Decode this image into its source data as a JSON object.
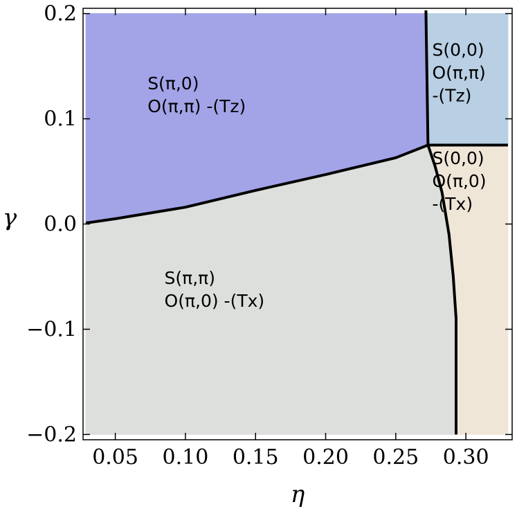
{
  "chart_data": {
    "type": "phase-diagram",
    "xlabel": "η",
    "ylabel": "γ",
    "xlim": [
      0.027,
      0.333
    ],
    "ylim": [
      -0.205,
      0.205
    ],
    "x_ticks": [
      {
        "value": 0.05,
        "label": "0.05"
      },
      {
        "value": 0.1,
        "label": "0.10"
      },
      {
        "value": 0.15,
        "label": "0.15"
      },
      {
        "value": 0.2,
        "label": "0.20"
      },
      {
        "value": 0.25,
        "label": "0.25"
      },
      {
        "value": 0.3,
        "label": "0.30"
      }
    ],
    "y_ticks": [
      {
        "value": 0.2,
        "label": "0.2"
      },
      {
        "value": 0.1,
        "label": "0.1"
      },
      {
        "value": 0.0,
        "label": "0.0"
      },
      {
        "value": -0.1,
        "label": "−0.1"
      },
      {
        "value": -0.2,
        "label": "−0.2"
      }
    ],
    "grid": false,
    "regions": [
      {
        "color": "#a3a3e8",
        "polygon": [
          [
            0.029,
            0.2
          ],
          [
            0.273,
            0.2
          ],
          [
            0.273,
            0.075
          ],
          [
            0.25,
            0.063
          ],
          [
            0.2,
            0.047
          ],
          [
            0.15,
            0.032
          ],
          [
            0.1,
            0.016
          ],
          [
            0.05,
            0.005
          ],
          [
            0.029,
            0.001
          ]
        ],
        "label_lines": [
          "S(π,0)",
          "O(π,π) -(Tz)"
        ],
        "label_at": [
          0.073,
          0.128
        ]
      },
      {
        "color": "#b8cfe4",
        "polygon": [
          [
            0.273,
            0.2
          ],
          [
            0.33,
            0.2
          ],
          [
            0.33,
            0.075
          ],
          [
            0.273,
            0.075
          ]
        ],
        "label_lines": [
          "S(0,0)",
          "O(π,π)",
          "-(Tz)"
        ],
        "label_at": [
          0.276,
          0.16
        ]
      },
      {
        "color": "#f0e6d8",
        "polygon": [
          [
            0.273,
            0.075
          ],
          [
            0.33,
            0.075
          ],
          [
            0.33,
            -0.2
          ],
          [
            0.293,
            -0.2
          ],
          [
            0.293,
            -0.09
          ],
          [
            0.291,
            -0.05
          ],
          [
            0.288,
            -0.01
          ],
          [
            0.283,
            0.03
          ],
          [
            0.278,
            0.055
          ]
        ],
        "label_lines": [
          "S(0,0)",
          "O(π,0)",
          "-(Tx)"
        ],
        "label_at": [
          0.276,
          0.057
        ]
      },
      {
        "color": "#dcdfdb",
        "polygon": [
          [
            0.029,
            0.001
          ],
          [
            0.05,
            0.005
          ],
          [
            0.1,
            0.016
          ],
          [
            0.15,
            0.032
          ],
          [
            0.2,
            0.047
          ],
          [
            0.25,
            0.063
          ],
          [
            0.273,
            0.075
          ],
          [
            0.278,
            0.055
          ],
          [
            0.283,
            0.03
          ],
          [
            0.288,
            -0.01
          ],
          [
            0.291,
            -0.05
          ],
          [
            0.293,
            -0.09
          ],
          [
            0.293,
            -0.2
          ],
          [
            0.029,
            -0.2
          ]
        ],
        "label_lines": [
          "S(π,π)",
          "O(π,0) -(Tx)"
        ],
        "label_at": [
          0.085,
          -0.057
        ]
      }
    ],
    "boundaries": [
      {
        "points": [
          [
            0.029,
            0.001
          ],
          [
            0.05,
            0.005
          ],
          [
            0.1,
            0.016
          ],
          [
            0.15,
            0.032
          ],
          [
            0.2,
            0.047
          ],
          [
            0.25,
            0.063
          ],
          [
            0.273,
            0.075
          ]
        ]
      },
      {
        "points": [
          [
            0.2715,
            0.203
          ],
          [
            0.273,
            0.075
          ]
        ]
      },
      {
        "points": [
          [
            0.273,
            0.075
          ],
          [
            0.33,
            0.075
          ]
        ]
      },
      {
        "points": [
          [
            0.273,
            0.075
          ],
          [
            0.278,
            0.055
          ],
          [
            0.283,
            0.03
          ],
          [
            0.288,
            -0.01
          ],
          [
            0.291,
            -0.05
          ],
          [
            0.293,
            -0.09
          ],
          [
            0.293,
            -0.2
          ]
        ]
      }
    ]
  }
}
